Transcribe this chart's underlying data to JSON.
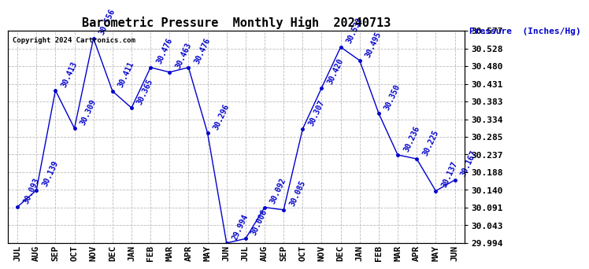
{
  "title": "Barometric Pressure  Monthly High  20240713",
  "ylabel": "Pressure  (Inches/Hg)",
  "copyright": "Copyright 2024 Cartronics.com",
  "months": [
    "JUL",
    "AUG",
    "SEP",
    "OCT",
    "NOV",
    "DEC",
    "JAN",
    "FEB",
    "MAR",
    "APR",
    "MAY",
    "JUN",
    "JUL",
    "AUG",
    "SEP",
    "OCT",
    "NOV",
    "DEC",
    "JAN",
    "FEB",
    "MAR",
    "APR",
    "MAY",
    "JUN"
  ],
  "values": [
    30.093,
    30.139,
    30.413,
    30.309,
    30.556,
    30.411,
    30.365,
    30.476,
    30.463,
    30.476,
    30.296,
    29.994,
    30.006,
    30.092,
    30.085,
    30.307,
    30.42,
    30.532,
    30.495,
    30.35,
    30.236,
    30.225,
    30.137,
    30.167
  ],
  "ylim_min": 29.994,
  "ylim_max": 30.577,
  "line_color": "#0000CC",
  "marker_color": "#0000CC",
  "bg_color": "#ffffff",
  "grid_color": "#bbbbbb",
  "title_fontsize": 11,
  "label_fontsize": 8,
  "tick_fontsize": 8,
  "annotation_fontsize": 7,
  "yticks": [
    29.994,
    30.043,
    30.091,
    30.14,
    30.188,
    30.237,
    30.285,
    30.334,
    30.383,
    30.431,
    30.48,
    30.528,
    30.577
  ]
}
